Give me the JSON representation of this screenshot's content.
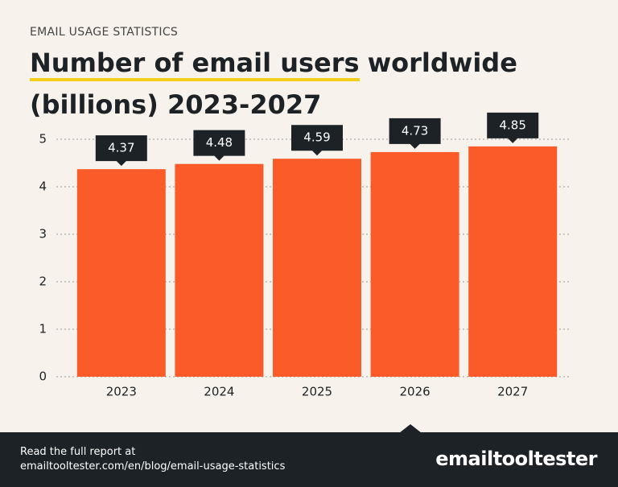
{
  "kicker": "EMAIL USAGE STATISTICS",
  "chart_data": {
    "type": "bar",
    "title": {
      "highlight": "Number of email users",
      "rest": "worldwide (billions) 2023-2027"
    },
    "categories": [
      "2023",
      "2024",
      "2025",
      "2026",
      "2027"
    ],
    "values": [
      4.37,
      4.48,
      4.59,
      4.73,
      4.85
    ],
    "color": "#fb5a29",
    "ylim": [
      0,
      5
    ],
    "yticks": [
      0,
      1,
      2,
      3,
      4,
      5
    ],
    "grid": true
  },
  "footer": {
    "text": "Read the full report at",
    "url": "emailtooltester.com/en/blog/email-usage-statistics",
    "logo": "emailtooltester"
  }
}
